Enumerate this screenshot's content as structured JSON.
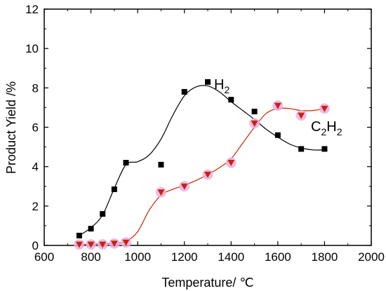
{
  "chart_data": {
    "type": "scatter",
    "xlabel": "Temperature/ ℃",
    "ylabel": "Product Yield /%",
    "xlim": [
      600,
      2000
    ],
    "ylim": [
      0,
      12
    ],
    "xticks": [
      "600",
      "800",
      "1000",
      "1200",
      "1400",
      "1600",
      "1800",
      "2000"
    ],
    "yticks": [
      "0",
      "2",
      "4",
      "6",
      "8",
      "10",
      "12"
    ],
    "grid": false,
    "series": [
      {
        "name": "H2",
        "label_main": "H",
        "label_sub": "2",
        "marker": "square",
        "color": "#000000",
        "x": [
          750,
          800,
          850,
          900,
          950,
          1100,
          1200,
          1300,
          1400,
          1500,
          1600,
          1700,
          1800
        ],
        "y": [
          0.5,
          0.85,
          1.6,
          2.85,
          4.2,
          4.1,
          7.8,
          8.3,
          7.4,
          6.8,
          5.6,
          4.9,
          4.9
        ],
        "fit": [
          [
            750,
            0.5
          ],
          [
            800,
            0.9
          ],
          [
            850,
            1.55
          ],
          [
            900,
            2.9
          ],
          [
            950,
            4.1
          ],
          [
            1000,
            4.25
          ],
          [
            1050,
            4.6
          ],
          [
            1100,
            5.4
          ],
          [
            1150,
            6.6
          ],
          [
            1200,
            7.6
          ],
          [
            1250,
            8.05
          ],
          [
            1300,
            8.1
          ],
          [
            1350,
            7.8
          ],
          [
            1400,
            7.3
          ],
          [
            1450,
            6.85
          ],
          [
            1500,
            6.4
          ],
          [
            1550,
            5.9
          ],
          [
            1600,
            5.5
          ],
          [
            1650,
            5.15
          ],
          [
            1700,
            4.95
          ],
          [
            1750,
            4.85
          ],
          [
            1800,
            4.85
          ]
        ]
      },
      {
        "name": "C2H2",
        "label_main": "C",
        "label_sub1": "2",
        "label_mid": "H",
        "label_sub2": "2",
        "marker": "triangle-down",
        "color": "#cc2200",
        "halo": "#e8b0e8",
        "x": [
          750,
          800,
          850,
          900,
          950,
          1100,
          1200,
          1300,
          1400,
          1500,
          1600,
          1700,
          1800
        ],
        "y": [
          0.05,
          0.05,
          0.05,
          0.1,
          0.15,
          2.7,
          3.0,
          3.6,
          4.2,
          6.2,
          7.1,
          6.6,
          6.95
        ],
        "fit": [
          [
            750,
            0.05
          ],
          [
            800,
            0.06
          ],
          [
            850,
            0.08
          ],
          [
            900,
            0.1
          ],
          [
            950,
            0.2
          ],
          [
            1000,
            0.7
          ],
          [
            1050,
            1.8
          ],
          [
            1100,
            2.55
          ],
          [
            1150,
            2.85
          ],
          [
            1200,
            3.05
          ],
          [
            1250,
            3.3
          ],
          [
            1300,
            3.6
          ],
          [
            1350,
            3.95
          ],
          [
            1400,
            4.4
          ],
          [
            1450,
            5.2
          ],
          [
            1500,
            6.0
          ],
          [
            1550,
            6.7
          ],
          [
            1600,
            6.95
          ],
          [
            1650,
            6.95
          ],
          [
            1700,
            6.85
          ],
          [
            1750,
            6.85
          ],
          [
            1800,
            6.95
          ]
        ]
      }
    ]
  }
}
